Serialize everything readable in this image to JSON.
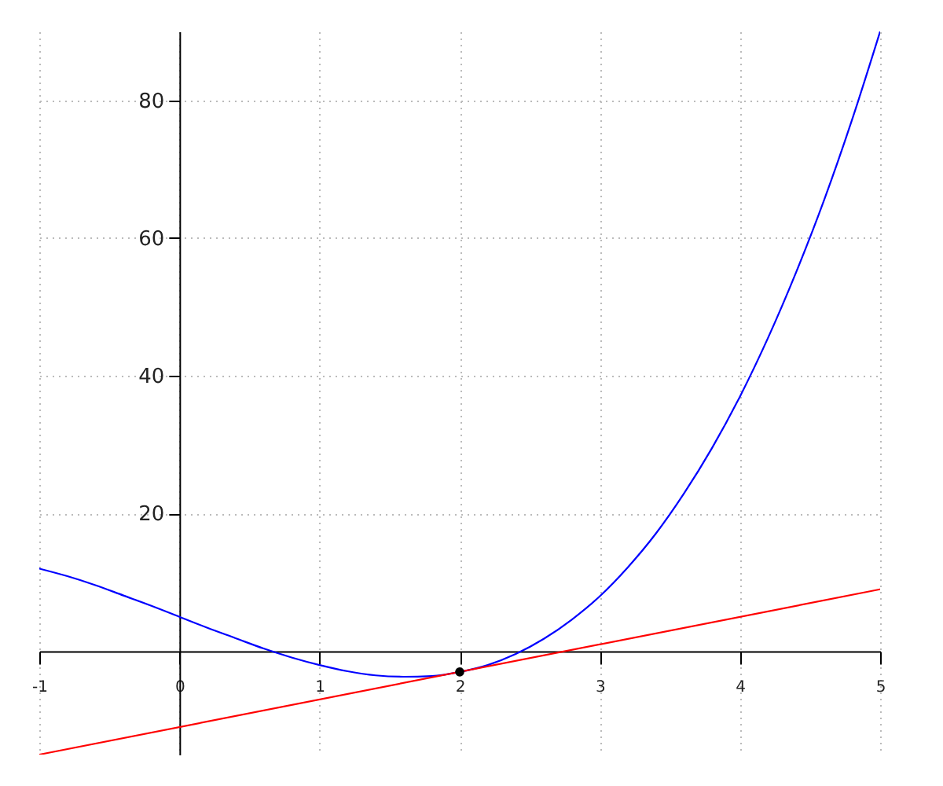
{
  "chart_data": {
    "type": "line",
    "xlim": [
      -1,
      5
    ],
    "ylim": [
      -15,
      90
    ],
    "xticks": [
      -1,
      0,
      1,
      2,
      3,
      4,
      5
    ],
    "yticks": [
      20,
      40,
      60,
      80
    ],
    "grid": true,
    "series": [
      {
        "color": "#0000ff",
        "x": [
          -1,
          -0.8,
          -0.6,
          -0.4,
          -0.2,
          0,
          0.2,
          0.4,
          0.6,
          0.8,
          1,
          1.2,
          1.4,
          1.6,
          1.8,
          2,
          2.2,
          2.4,
          2.6,
          2.8,
          3,
          3.2,
          3.4,
          3.6,
          3.8,
          4,
          4.2,
          4.4,
          4.6,
          4.8,
          5
        ],
        "values": [
          12,
          10.9,
          9.6,
          8.1,
          6.6,
          5,
          3.4,
          1.9,
          0.4,
          -0.9,
          -2,
          -2.9,
          -3.5,
          -3.7,
          -3.6,
          -3,
          -2,
          -0.4,
          1.8,
          4.6,
          8,
          12.2,
          17.1,
          22.9,
          29.5,
          37,
          45.5,
          55,
          65.5,
          77.2,
          90
        ]
      },
      {
        "color": "#ff0000",
        "x": [
          -1,
          5
        ],
        "values": [
          -15,
          9
        ]
      },
      {
        "type": "scatter",
        "color": "#000000",
        "marker": "circle",
        "x": [
          2
        ],
        "values": [
          -3
        ]
      }
    ]
  }
}
